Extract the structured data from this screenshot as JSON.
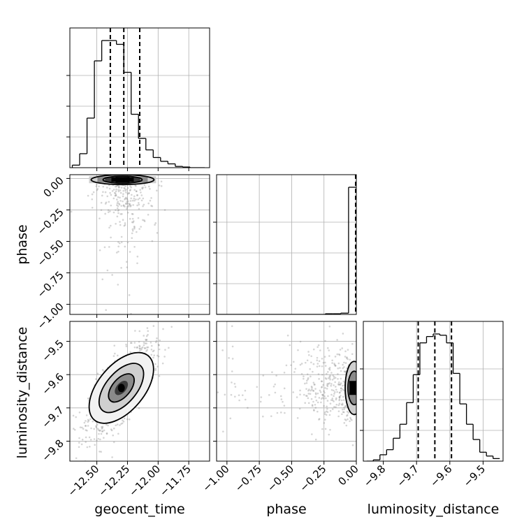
{
  "chart_data": [
    {
      "id": "geocent_time",
      "type": "histogram",
      "xlabel": "",
      "xlim": [
        -12.72,
        -11.58
      ],
      "bin_edges": [
        -12.7,
        -12.64,
        -12.58,
        -12.52,
        -12.46,
        -12.4,
        -12.34,
        -12.28,
        -12.22,
        -12.16,
        -12.1,
        -12.04,
        -11.98,
        -11.92,
        -11.86,
        -11.8,
        -11.74,
        -11.68,
        -11.62
      ],
      "counts": [
        0.02,
        0.11,
        0.39,
        0.84,
        1.0,
        1.0,
        0.97,
        0.75,
        0.42,
        0.23,
        0.14,
        0.08,
        0.05,
        0.03,
        0.01,
        0.005,
        0,
        0
      ],
      "quantile_lines": [
        -12.39,
        -12.28,
        -12.15
      ],
      "grid": true
    },
    {
      "id": "phase",
      "type": "histogram",
      "xlabel": "",
      "xlim": [
        -1.08,
        0.0
      ],
      "bin_edges": [
        -1.08,
        -1.02,
        -0.96,
        -0.9,
        -0.84,
        -0.78,
        -0.72,
        -0.66,
        -0.6,
        -0.54,
        -0.48,
        -0.42,
        -0.36,
        -0.3,
        -0.24,
        -0.18,
        -0.12,
        -0.06,
        0.0
      ],
      "counts": [
        0,
        0,
        0,
        0,
        0,
        0,
        0,
        0,
        0,
        0,
        0,
        0,
        0,
        0,
        0.005,
        0.005,
        0.01,
        1.0
      ],
      "quantile_lines": [
        -0.004,
        -0.001,
        0.0
      ],
      "grid": true
    },
    {
      "id": "luminosity_distance",
      "type": "histogram",
      "xlabel": "luminosity_distance",
      "xlim": [
        -9.86,
        -9.44
      ],
      "xticks": [
        -9.8,
        -9.7,
        -9.6,
        -9.5
      ],
      "bin_edges": [
        -9.85,
        -9.83,
        -9.81,
        -9.79,
        -9.77,
        -9.75,
        -9.73,
        -9.71,
        -9.69,
        -9.67,
        -9.65,
        -9.63,
        -9.61,
        -9.59,
        -9.57,
        -9.55,
        -9.53,
        -9.51,
        -9.49,
        -9.47,
        -9.45
      ],
      "counts": [
        0,
        0.01,
        0.05,
        0.09,
        0.18,
        0.29,
        0.46,
        0.68,
        0.93,
        0.98,
        1.0,
        0.99,
        0.93,
        0.69,
        0.45,
        0.29,
        0.17,
        0.07,
        0.04,
        0.02
      ],
      "quantile_lines": [
        -9.695,
        -9.645,
        -9.595
      ],
      "grid": true
    },
    {
      "id": "phase_vs_geocent_time",
      "type": "scatter",
      "xlim": [
        -12.72,
        -11.58
      ],
      "ylim": [
        -1.08,
        0.03
      ],
      "yticks": [
        0.0,
        -0.25,
        -0.5,
        -0.75,
        -1.0
      ],
      "ylabel": "phase",
      "mode": {
        "x": -12.29,
        "y": -0.01
      },
      "spread": {
        "x": 0.12,
        "y": 0.22
      },
      "grid": true
    },
    {
      "id": "luminosity_distance_vs_geocent_time",
      "type": "scatter",
      "xlim": [
        -12.72,
        -11.58
      ],
      "ylim": [
        -9.86,
        -9.44
      ],
      "xticks": [
        -12.5,
        -12.25,
        -12.0,
        -11.75
      ],
      "yticks": [
        -9.5,
        -9.6,
        -9.7,
        -9.8
      ],
      "xlabel": "geocent_time",
      "ylabel": "luminosity_distance",
      "mode": {
        "x": -12.3,
        "y": -9.64
      },
      "spread": {
        "x": 0.13,
        "y": 0.065
      },
      "correlation": 0.72,
      "grid": true
    },
    {
      "id": "luminosity_distance_vs_phase",
      "type": "scatter",
      "xlim": [
        -1.08,
        0.0
      ],
      "ylim": [
        -9.86,
        -9.44
      ],
      "xticks": [
        -1.0,
        -0.75,
        -0.5,
        -0.25,
        0.0
      ],
      "xlabel": "phase",
      "mode": {
        "x": -0.01,
        "y": -9.64
      },
      "spread": {
        "x": 0.2,
        "y": 0.065
      },
      "grid": true
    }
  ],
  "axis_labels": {
    "geocent_time": "geocent_time",
    "phase": "phase",
    "luminosity_distance": "luminosity_distance"
  },
  "tick_labels": {
    "geocent_time": [
      "−12.50",
      "−12.25",
      "−12.00",
      "−11.75"
    ],
    "phase_x": [
      "−1.00",
      "−0.75",
      "−0.50",
      "−0.25",
      "0.00"
    ],
    "phase_y": [
      "0.00",
      "−0.25",
      "−0.50",
      "−0.75",
      "−1.00"
    ],
    "luminosity_distance_x": [
      "−9.8",
      "−9.7",
      "−9.6",
      "−9.5"
    ],
    "luminosity_distance_y": [
      "−9.5",
      "−9.6",
      "−9.7",
      "−9.8"
    ]
  },
  "colors": {
    "axes": "#000000",
    "grid": "#b0b0b0",
    "points": "#888888",
    "contour_fill": [
      "#f2f2f2",
      "#cfcfcf",
      "#8a8a8a",
      "#3a3a3a",
      "#000000"
    ]
  }
}
